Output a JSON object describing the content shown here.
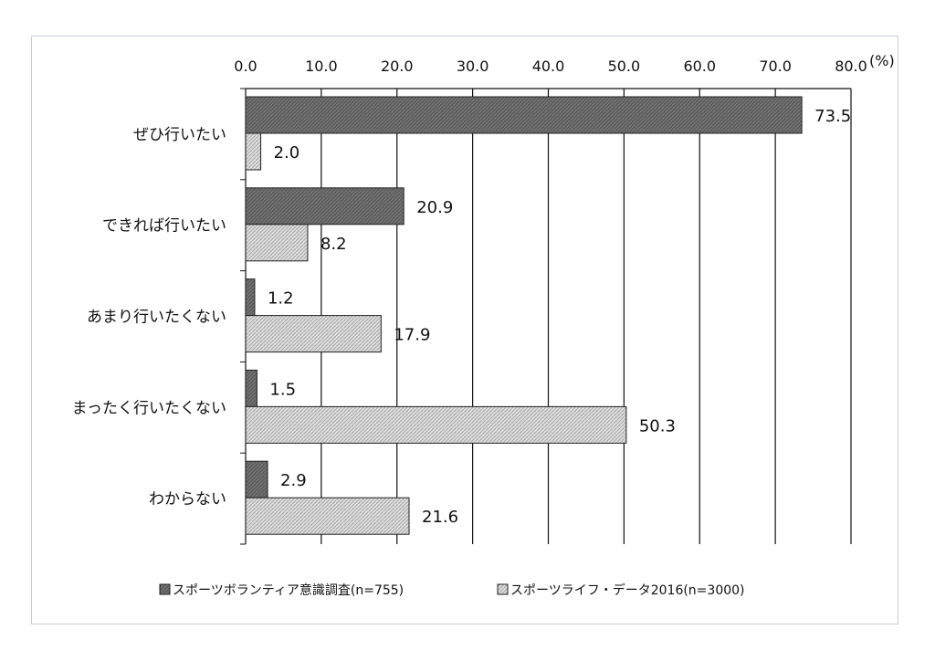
{
  "chart_data": {
    "type": "bar",
    "orientation": "horizontal",
    "categories": [
      "ぜひ行いたい",
      "できれば行いたい",
      "あまり行いたくない",
      "まったく行いたくない",
      "わからない"
    ],
    "series": [
      {
        "name": "スポーツボランティア意識調査(n=755)",
        "values": [
          73.5,
          20.9,
          1.2,
          1.5,
          2.9
        ],
        "color": "#606060"
      },
      {
        "name": "スポーツライフ・データ2016(n=3000)",
        "values": [
          2.0,
          8.2,
          17.9,
          50.3,
          21.6
        ],
        "color": "#d8d8d8"
      }
    ],
    "value_labels": [
      [
        "73.5",
        "20.9",
        "1.2",
        "1.5",
        "2.9"
      ],
      [
        "2.0",
        "8.2",
        "17.9",
        "50.3",
        "21.6"
      ]
    ],
    "xlim": [
      0,
      80
    ],
    "x_ticks": [
      "0.0",
      "10.0",
      "20.0",
      "30.0",
      "40.0",
      "50.0",
      "60.0",
      "70.0",
      "80.0"
    ],
    "x_unit": "(%)",
    "axis_position": "top",
    "grid": true,
    "legend_position": "bottom"
  }
}
